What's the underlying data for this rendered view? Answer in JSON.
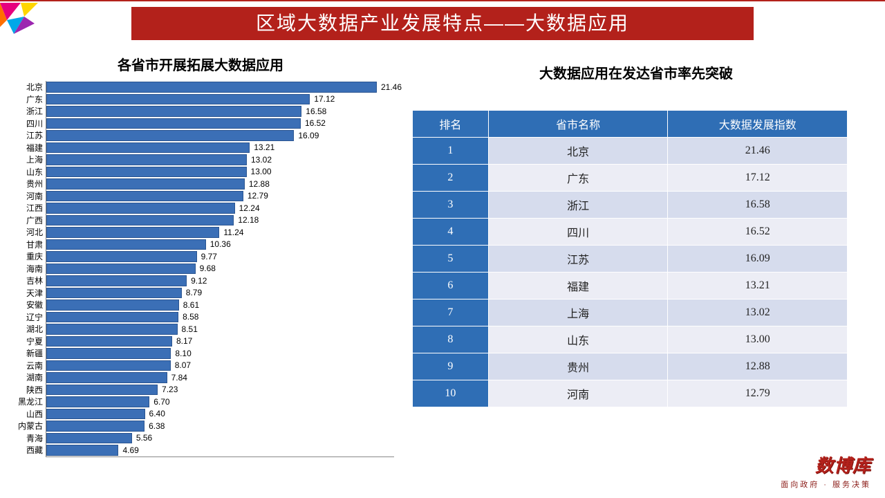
{
  "banner": {
    "title": "区域大数据产业发展特点——大数据应用"
  },
  "chart": {
    "type": "bar",
    "title": "各省市开展拓展大数据应用",
    "bar_color": "#3b6fb6",
    "bar_border": "#2a5490",
    "axis_color": "#888888",
    "label_fontsize": 12,
    "title_fontsize": 20,
    "xlim": [
      0,
      22
    ],
    "categories": [
      "北京",
      "广东",
      "浙江",
      "四川",
      "江苏",
      "福建",
      "上海",
      "山东",
      "贵州",
      "河南",
      "江西",
      "广西",
      "河北",
      "甘肃",
      "重庆",
      "海南",
      "吉林",
      "天津",
      "安徽",
      "辽宁",
      "湖北",
      "宁夏",
      "新疆",
      "云南",
      "湖南",
      "陕西",
      "黑龙江",
      "山西",
      "内蒙古",
      "青海",
      "西藏"
    ],
    "values": [
      21.46,
      17.12,
      16.58,
      16.52,
      16.09,
      13.21,
      13.02,
      13.0,
      12.88,
      12.79,
      12.24,
      12.18,
      11.24,
      10.36,
      9.77,
      9.68,
      9.12,
      8.79,
      8.61,
      8.58,
      8.51,
      8.17,
      8.1,
      8.07,
      7.84,
      7.23,
      6.7,
      6.4,
      6.38,
      5.56,
      4.69
    ]
  },
  "right": {
    "title": "大数据应用在发达省市率先突破",
    "columns": [
      "排名",
      "省市名称",
      "大数据发展指数"
    ],
    "header_bg": "#2f6eb5",
    "header_color": "#ffffff",
    "row_even_bg": "#d6dced",
    "row_odd_bg": "#ecedf5",
    "rows": [
      {
        "rank": "1",
        "name": "北京",
        "index": "21.46"
      },
      {
        "rank": "2",
        "name": "广东",
        "index": "17.12"
      },
      {
        "rank": "3",
        "name": "浙江",
        "index": "16.58"
      },
      {
        "rank": "4",
        "name": "四川",
        "index": "16.52"
      },
      {
        "rank": "5",
        "name": "江苏",
        "index": "16.09"
      },
      {
        "rank": "6",
        "name": "福建",
        "index": "13.21"
      },
      {
        "rank": "7",
        "name": "上海",
        "index": "13.02"
      },
      {
        "rank": "8",
        "name": "山东",
        "index": "13.00"
      },
      {
        "rank": "9",
        "name": "贵州",
        "index": "12.88"
      },
      {
        "rank": "10",
        "name": "河南",
        "index": "12.79"
      }
    ]
  },
  "footer": {
    "brand": "数博库",
    "slogan": "面向政府 · 服务决策",
    "brand_color": "#b3211b"
  },
  "decoration_colors": [
    "#e6007e",
    "#ffd500",
    "#9c27b0",
    "#00a8e8",
    "#ff6f00"
  ]
}
